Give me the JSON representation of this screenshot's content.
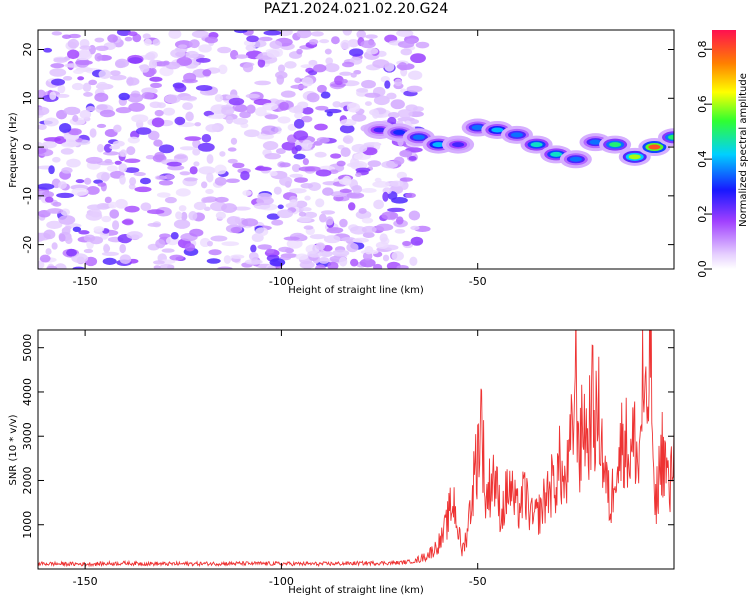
{
  "title": "PAZ1.2024.021.02.20.G24",
  "chart_data": [
    {
      "type": "heatmap",
      "xlabel": "Height of straight line (km)",
      "ylabel": "Frequency (Hz)",
      "xlim": [
        -162,
        0
      ],
      "ylim": [
        -25,
        24
      ],
      "x_ticks": [
        -150,
        -100,
        -50
      ],
      "y_ticks": [
        -20,
        -10,
        0,
        10,
        20
      ],
      "colorbar": {
        "label": "Normalized spectral amplitude",
        "range": [
          0,
          0.87
        ],
        "ticks": [
          0.0,
          0.2,
          0.4,
          0.6,
          0.8
        ],
        "colors": [
          "#ffffff",
          "#e0c8ff",
          "#9a30ff",
          "#1010ff",
          "#00d8ff",
          "#30ff30",
          "#ffff00",
          "#ff8000",
          "#ff1040"
        ]
      },
      "noise_region": {
        "x": [
          -162,
          -64
        ],
        "y": [
          -25,
          24
        ],
        "typical_amplitude": 0.15
      },
      "signal_trace": [
        {
          "x": -75,
          "y": 3.5,
          "amp": 0.25
        },
        {
          "x": -70,
          "y": 3.0,
          "amp": 0.3
        },
        {
          "x": -65,
          "y": 2.0,
          "amp": 0.35
        },
        {
          "x": -60,
          "y": 0.5,
          "amp": 0.4
        },
        {
          "x": -55,
          "y": 0.5,
          "amp": 0.25
        },
        {
          "x": -50,
          "y": 4.0,
          "amp": 0.35
        },
        {
          "x": -45,
          "y": 3.5,
          "amp": 0.4
        },
        {
          "x": -40,
          "y": 2.5,
          "amp": 0.35
        },
        {
          "x": -35,
          "y": 0.5,
          "amp": 0.45
        },
        {
          "x": -30,
          "y": -1.5,
          "amp": 0.45
        },
        {
          "x": -25,
          "y": -2.5,
          "amp": 0.35
        },
        {
          "x": -20,
          "y": 1.0,
          "amp": 0.35
        },
        {
          "x": -15,
          "y": 0.5,
          "amp": 0.5
        },
        {
          "x": -10,
          "y": -2.0,
          "amp": 0.6
        },
        {
          "x": -5,
          "y": 0.0,
          "amp": 0.8
        },
        {
          "x": 0,
          "y": 2.0,
          "amp": 0.5
        }
      ]
    },
    {
      "type": "line",
      "xlabel": "Height of straight line (km)",
      "ylabel": "SNR (10 * v/v)",
      "xlim": [
        -162,
        0
      ],
      "ylim": [
        0,
        5400
      ],
      "x_ticks": [
        -150,
        -100,
        -50
      ],
      "y_ticks": [
        1000,
        2000,
        3000,
        4000,
        5000
      ],
      "color": "#ee3333",
      "series": [
        {
          "points": [
            [
              -162,
              120
            ],
            [
              -150,
              110
            ],
            [
              -140,
              130
            ],
            [
              -130,
              115
            ],
            [
              -120,
              120
            ],
            [
              -110,
              125
            ],
            [
              -100,
              120
            ],
            [
              -90,
              115
            ],
            [
              -80,
              130
            ],
            [
              -70,
              140
            ],
            [
              -66,
              180
            ],
            [
              -63,
              300
            ],
            [
              -61,
              450
            ],
            [
              -59,
              700
            ],
            [
              -58,
              1000
            ],
            [
              -57,
              1350
            ],
            [
              -56,
              1500
            ],
            [
              -55,
              900
            ],
            [
              -54,
              400
            ],
            [
              -53,
              700
            ],
            [
              -52,
              1300
            ],
            [
              -51,
              2000
            ],
            [
              -50,
              2700
            ],
            [
              -49,
              3500
            ],
            [
              -48,
              1500
            ],
            [
              -46,
              2200
            ],
            [
              -44,
              1200
            ],
            [
              -42,
              1900
            ],
            [
              -40,
              1300
            ],
            [
              -38,
              1700
            ],
            [
              -36,
              1100
            ],
            [
              -34,
              1300
            ],
            [
              -32,
              1800
            ],
            [
              -30,
              2000
            ],
            [
              -29,
              2400
            ],
            [
              -28,
              1800
            ],
            [
              -27,
              2200
            ],
            [
              -26,
              3000
            ],
            [
              -25,
              4400
            ],
            [
              -24,
              2500
            ],
            [
              -23,
              3500
            ],
            [
              -22,
              2800
            ],
            [
              -21,
              3800
            ],
            [
              -20,
              3300
            ],
            [
              -19,
              3500
            ],
            [
              -18,
              2400
            ],
            [
              -17,
              1800
            ],
            [
              -16,
              1300
            ],
            [
              -15,
              2600
            ],
            [
              -14,
              2400
            ],
            [
              -13,
              3100
            ],
            [
              -12,
              2800
            ],
            [
              -11,
              2500
            ],
            [
              -10,
              3000
            ],
            [
              -9,
              2200
            ],
            [
              -8,
              4200
            ],
            [
              -7,
              3100
            ],
            [
              -6,
              5400
            ],
            [
              -5,
              1200
            ],
            [
              -4,
              2000
            ],
            [
              -3,
              2700
            ],
            [
              -2,
              2300
            ],
            [
              -1,
              1600
            ],
            [
              0,
              3200
            ]
          ]
        }
      ]
    }
  ]
}
